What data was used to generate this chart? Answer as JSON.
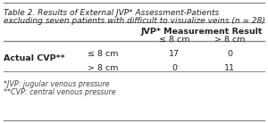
{
  "title_line1": "Table 2. Results of External JVP* Assessment-Patients",
  "title_line2": "excluding seven patients with difficult to visualize veins (n = 28)",
  "col_group_label": "JVP* Measurement Result",
  "col_labels": [
    "≤ 8 cm",
    "> 8 cm"
  ],
  "row_group_label": "Actual CVP**",
  "row_labels": [
    "≤ 8 cm",
    "> 8 cm"
  ],
  "data": [
    [
      17,
      0
    ],
    [
      0,
      11
    ]
  ],
  "footnote1": "*JVP: jugular venous pressure",
  "footnote2": "**CVP: central venous pressure",
  "bg_color": "#ffffff",
  "border_color": "#888888",
  "title_fontsize": 6.5,
  "cell_fontsize": 6.8,
  "footnote_fontsize": 5.8
}
